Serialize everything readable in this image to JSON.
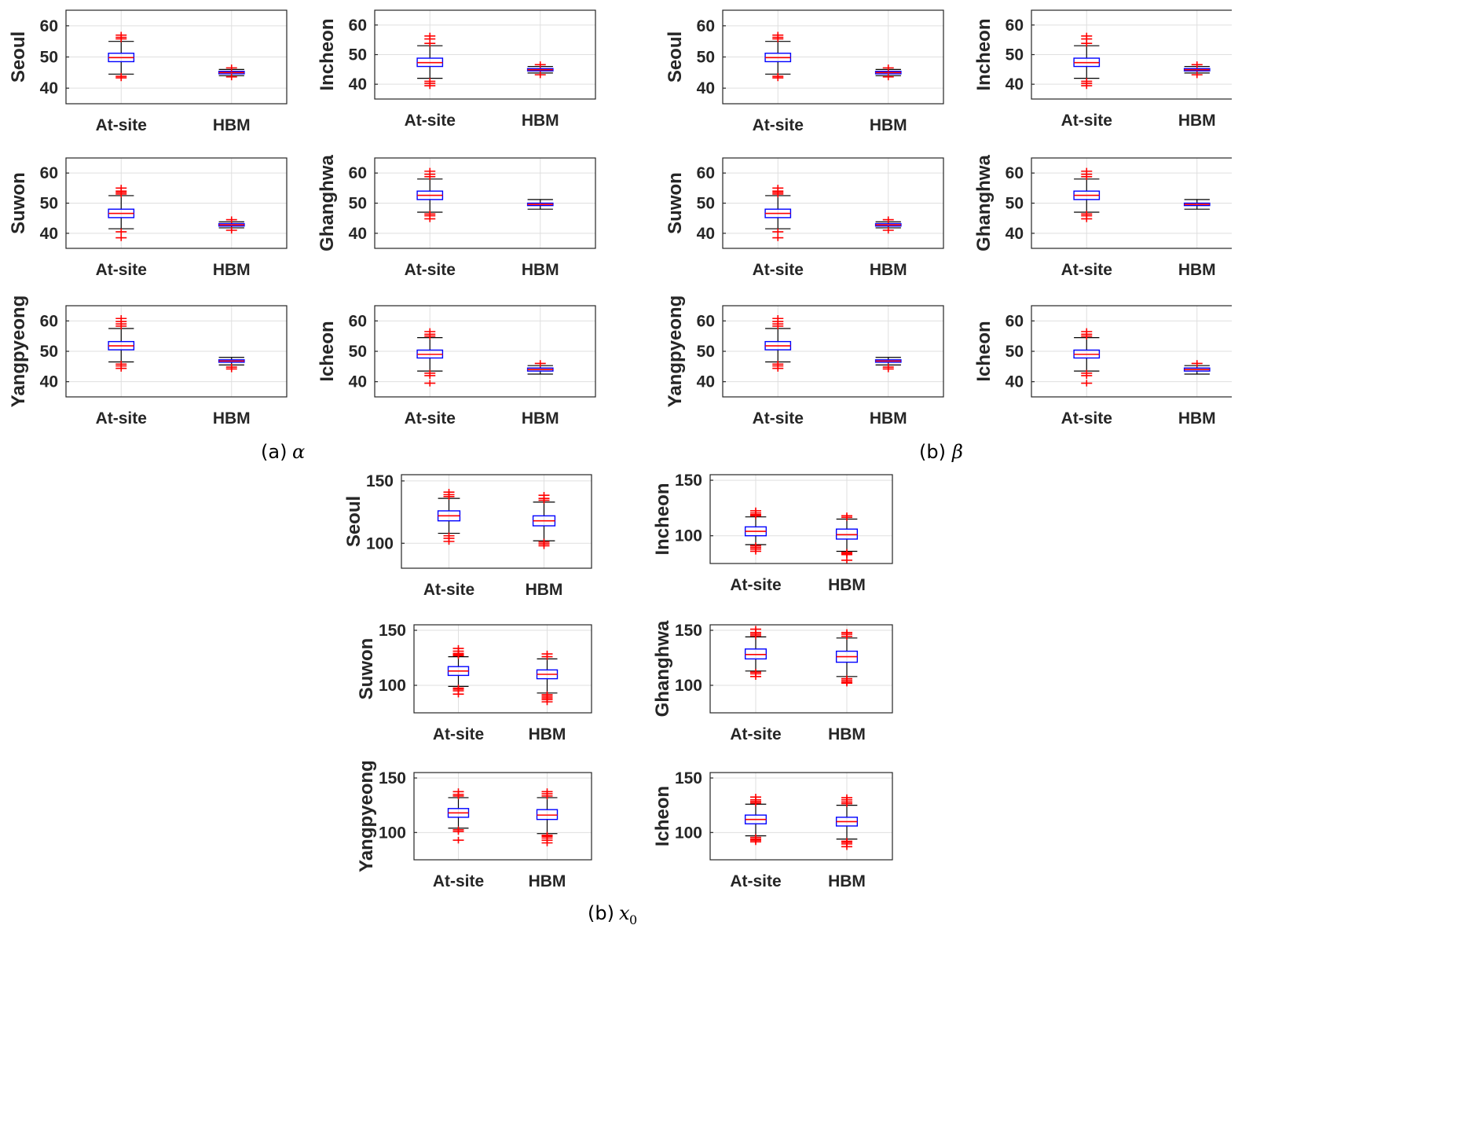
{
  "chart_data": {
    "type": "box",
    "x_categories": [
      "At-site",
      "HBM"
    ],
    "captions": {
      "alpha": {
        "label": "(a)",
        "symbol": "α"
      },
      "beta": {
        "label": "(b)",
        "symbol": "β"
      },
      "x0": {
        "label": "(b)",
        "symbol": "x",
        "subscript": "0"
      }
    },
    "colors": {
      "box": "#0000ff",
      "median": "#ff0000",
      "whisker": "#000000",
      "outlier": "#ff0000",
      "grid": "#dfdfdf",
      "axis": "#262626"
    },
    "panels": [
      {
        "group": "alpha",
        "station": "Seoul",
        "ylim": [
          35,
          65
        ],
        "yticks": [
          40,
          50,
          60
        ],
        "boxes": [
          {
            "q1": 48.5,
            "median": 49.8,
            "q3": 51.2,
            "whislo": 44.5,
            "whishi": 55.0,
            "outliers_high": [
              55.8,
              56.3,
              57.0
            ],
            "outliers_low": [
              43.8,
              43.3
            ]
          },
          {
            "q1": 44.6,
            "median": 45.0,
            "q3": 45.4,
            "whislo": 44.0,
            "whishi": 46.0,
            "outliers_high": [
              46.5
            ],
            "outliers_low": [
              43.6
            ]
          }
        ]
      },
      {
        "group": "alpha",
        "station": "Incheon",
        "ylim": [
          35,
          65
        ],
        "yticks": [
          40,
          50,
          60
        ],
        "boxes": [
          {
            "q1": 46.0,
            "median": 47.3,
            "q3": 48.8,
            "whislo": 42.0,
            "whishi": 53.0,
            "outliers_high": [
              53.8,
              55.3,
              56.3
            ],
            "outliers_low": [
              41.0,
              40.3,
              39.5
            ]
          },
          {
            "q1": 44.5,
            "median": 44.9,
            "q3": 45.3,
            "whislo": 43.8,
            "whishi": 46.0,
            "outliers_high": [
              46.6
            ],
            "outliers_low": [
              43.2
            ]
          }
        ]
      },
      {
        "group": "alpha",
        "station": "Suwon",
        "ylim": [
          35,
          65
        ],
        "yticks": [
          40,
          50,
          60
        ],
        "boxes": [
          {
            "q1": 45.2,
            "median": 46.6,
            "q3": 48.0,
            "whislo": 41.5,
            "whishi": 52.5,
            "outliers_high": [
              53.0,
              53.5,
              54.0,
              55.0
            ],
            "outliers_low": [
              40.5,
              38.5
            ]
          },
          {
            "q1": 42.4,
            "median": 42.8,
            "q3": 43.2,
            "whislo": 41.8,
            "whishi": 43.8,
            "outliers_high": [
              44.5
            ],
            "outliers_low": [
              41.0
            ]
          }
        ]
      },
      {
        "group": "alpha",
        "station": "Ghanghwa",
        "ylim": [
          35,
          65
        ],
        "yticks": [
          40,
          50,
          60
        ],
        "boxes": [
          {
            "q1": 51.2,
            "median": 52.6,
            "q3": 54.0,
            "whislo": 47.0,
            "whishi": 58.0,
            "outliers_high": [
              58.8,
              59.6,
              60.6
            ],
            "outliers_low": [
              46.4,
              45.8,
              44.8
            ]
          },
          {
            "q1": 49.2,
            "median": 49.6,
            "q3": 50.0,
            "whislo": 48.0,
            "whishi": 51.2,
            "outliers_high": [],
            "outliers_low": []
          }
        ]
      },
      {
        "group": "alpha",
        "station": "Yangpyeong",
        "ylim": [
          35,
          65
        ],
        "yticks": [
          40,
          50,
          60
        ],
        "boxes": [
          {
            "q1": 50.5,
            "median": 51.8,
            "q3": 53.2,
            "whislo": 46.5,
            "whishi": 57.5,
            "outliers_high": [
              58.3,
              59.0,
              59.8,
              60.8
            ],
            "outliers_low": [
              45.8,
              45.2,
              44.4
            ]
          },
          {
            "q1": 46.4,
            "median": 46.8,
            "q3": 47.2,
            "whislo": 45.5,
            "whishi": 48.0,
            "outliers_high": [],
            "outliers_low": [
              44.8,
              44.2
            ]
          }
        ]
      },
      {
        "group": "alpha",
        "station": "Icheon",
        "ylim": [
          35,
          65
        ],
        "yticks": [
          40,
          50,
          60
        ],
        "boxes": [
          {
            "q1": 47.8,
            "median": 49.0,
            "q3": 50.4,
            "whislo": 43.5,
            "whishi": 54.5,
            "outliers_high": [
              55.0,
              55.6,
              56.5
            ],
            "outliers_low": [
              42.8,
              42.0,
              39.5
            ]
          },
          {
            "q1": 43.5,
            "median": 44.0,
            "q3": 44.5,
            "whislo": 42.5,
            "whishi": 45.3,
            "outliers_high": [
              46.0
            ],
            "outliers_low": []
          }
        ]
      },
      {
        "group": "beta",
        "station": "Seoul",
        "ylim": [
          35,
          65
        ],
        "yticks": [
          40,
          50,
          60
        ],
        "boxes": [
          {
            "q1": 48.5,
            "median": 49.8,
            "q3": 51.2,
            "whislo": 44.5,
            "whishi": 55.0,
            "outliers_high": [
              55.8,
              56.3,
              57.0
            ],
            "outliers_low": [
              43.8,
              43.3
            ]
          },
          {
            "q1": 44.6,
            "median": 45.0,
            "q3": 45.4,
            "whislo": 44.0,
            "whishi": 46.0,
            "outliers_high": [
              46.5
            ],
            "outliers_low": [
              43.6
            ]
          }
        ]
      },
      {
        "group": "beta",
        "station": "Incheon",
        "ylim": [
          35,
          65
        ],
        "yticks": [
          40,
          50,
          60
        ],
        "boxes": [
          {
            "q1": 46.0,
            "median": 47.3,
            "q3": 48.8,
            "whislo": 42.0,
            "whishi": 53.0,
            "outliers_high": [
              53.8,
              55.3,
              56.3
            ],
            "outliers_low": [
              41.0,
              40.3,
              39.5
            ]
          },
          {
            "q1": 44.5,
            "median": 44.9,
            "q3": 45.3,
            "whislo": 43.8,
            "whishi": 46.0,
            "outliers_high": [
              46.6
            ],
            "outliers_low": [
              43.2
            ]
          }
        ]
      },
      {
        "group": "beta",
        "station": "Suwon",
        "ylim": [
          35,
          65
        ],
        "yticks": [
          40,
          50,
          60
        ],
        "boxes": [
          {
            "q1": 45.2,
            "median": 46.6,
            "q3": 48.0,
            "whislo": 41.5,
            "whishi": 52.5,
            "outliers_high": [
              53.0,
              53.5,
              54.0,
              55.0
            ],
            "outliers_low": [
              40.5,
              38.5
            ]
          },
          {
            "q1": 42.4,
            "median": 42.8,
            "q3": 43.2,
            "whislo": 41.8,
            "whishi": 43.8,
            "outliers_high": [
              44.5
            ],
            "outliers_low": [
              41.0
            ]
          }
        ]
      },
      {
        "group": "beta",
        "station": "Ghanghwa",
        "ylim": [
          35,
          65
        ],
        "yticks": [
          40,
          50,
          60
        ],
        "boxes": [
          {
            "q1": 51.2,
            "median": 52.6,
            "q3": 54.0,
            "whislo": 47.0,
            "whishi": 58.0,
            "outliers_high": [
              58.8,
              59.6,
              60.6
            ],
            "outliers_low": [
              46.4,
              45.8,
              44.8
            ]
          },
          {
            "q1": 49.2,
            "median": 49.6,
            "q3": 50.0,
            "whislo": 48.0,
            "whishi": 51.2,
            "outliers_high": [],
            "outliers_low": []
          }
        ]
      },
      {
        "group": "beta",
        "station": "Yangpyeong",
        "ylim": [
          35,
          65
        ],
        "yticks": [
          40,
          50,
          60
        ],
        "boxes": [
          {
            "q1": 50.5,
            "median": 51.8,
            "q3": 53.2,
            "whislo": 46.5,
            "whishi": 57.5,
            "outliers_high": [
              58.3,
              59.0,
              59.8,
              60.8
            ],
            "outliers_low": [
              45.8,
              45.2,
              44.4
            ]
          },
          {
            "q1": 46.4,
            "median": 46.8,
            "q3": 47.2,
            "whislo": 45.5,
            "whishi": 48.0,
            "outliers_high": [],
            "outliers_low": [
              44.8,
              44.2
            ]
          }
        ]
      },
      {
        "group": "beta",
        "station": "Icheon",
        "ylim": [
          35,
          65
        ],
        "yticks": [
          40,
          50,
          60
        ],
        "boxes": [
          {
            "q1": 47.8,
            "median": 49.0,
            "q3": 50.4,
            "whislo": 43.5,
            "whishi": 54.5,
            "outliers_high": [
              55.0,
              55.6,
              56.5
            ],
            "outliers_low": [
              42.8,
              42.0,
              39.5
            ]
          },
          {
            "q1": 43.5,
            "median": 44.0,
            "q3": 44.5,
            "whislo": 42.5,
            "whishi": 45.3,
            "outliers_high": [
              46.0
            ],
            "outliers_low": []
          }
        ]
      },
      {
        "group": "x0",
        "station": "Seoul",
        "ylim": [
          80,
          155
        ],
        "yticks": [
          100,
          150
        ],
        "boxes": [
          {
            "q1": 118,
            "median": 122,
            "q3": 126,
            "whislo": 108,
            "whishi": 136,
            "outliers_high": [
              137.5,
              139,
              141
            ],
            "outliers_low": [
              106,
              104,
              101.5
            ]
          },
          {
            "q1": 114,
            "median": 118,
            "q3": 122,
            "whislo": 102,
            "whishi": 133,
            "outliers_high": [
              134.5,
              136,
              138.5
            ],
            "outliers_low": [
              101,
              99.5,
              98
            ]
          }
        ]
      },
      {
        "group": "x0",
        "station": "Incheon",
        "ylim": [
          75,
          155
        ],
        "yticks": [
          100,
          150
        ],
        "boxes": [
          {
            "q1": 100,
            "median": 104,
            "q3": 108,
            "whislo": 92,
            "whishi": 117,
            "outliers_high": [
              118,
              119,
              120.5,
              122.5
            ],
            "outliers_low": [
              91,
              89.5,
              88,
              86
            ]
          },
          {
            "q1": 97,
            "median": 101,
            "q3": 106,
            "whislo": 86,
            "whishi": 115,
            "outliers_high": [
              116.5,
              118
            ],
            "outliers_low": [
              85,
              84,
              83,
              78
            ]
          }
        ]
      },
      {
        "group": "x0",
        "station": "Suwon",
        "ylim": [
          75,
          155
        ],
        "yticks": [
          100,
          150
        ],
        "boxes": [
          {
            "q1": 109,
            "median": 113,
            "q3": 117,
            "whislo": 99,
            "whishi": 126,
            "outliers_high": [
              127,
              128,
              129,
              131,
              133.5
            ],
            "outliers_low": [
              97.5,
              96.5,
              95,
              92
            ]
          },
          {
            "q1": 106,
            "median": 110,
            "q3": 114,
            "whislo": 93,
            "whishi": 124,
            "outliers_high": [
              126,
              128.5
            ],
            "outliers_low": [
              91.5,
              90,
              88.5,
              87,
              85
            ]
          }
        ]
      },
      {
        "group": "x0",
        "station": "Ghanghwa",
        "ylim": [
          75,
          155
        ],
        "yticks": [
          100,
          150
        ],
        "boxes": [
          {
            "q1": 124,
            "median": 128,
            "q3": 133,
            "whislo": 113,
            "whishi": 144,
            "outliers_high": [
              145,
              146.5,
              148,
              151
            ],
            "outliers_low": [
              112,
              110.5,
              108
            ]
          },
          {
            "q1": 121,
            "median": 126,
            "q3": 131,
            "whislo": 108,
            "whishi": 143,
            "outliers_high": [
              144.5,
              146.5,
              148
            ],
            "outliers_low": [
              106,
              104.5,
              103,
              102
            ]
          }
        ]
      },
      {
        "group": "x0",
        "station": "Yangpyeong",
        "ylim": [
          75,
          155
        ],
        "yticks": [
          100,
          150
        ],
        "boxes": [
          {
            "q1": 114,
            "median": 118,
            "q3": 122,
            "whislo": 104,
            "whishi": 132,
            "outliers_high": [
              133.5,
              135,
              137.5
            ],
            "outliers_low": [
              102.5,
              101,
              93
            ]
          },
          {
            "q1": 112,
            "median": 116,
            "q3": 121,
            "whislo": 99,
            "whishi": 132,
            "outliers_high": [
              133.5,
              135.5,
              137.5
            ],
            "outliers_low": [
              97.5,
              96.5,
              95,
              93,
              90.5
            ]
          }
        ]
      },
      {
        "group": "x0",
        "station": "Icheon",
        "ylim": [
          75,
          155
        ],
        "yticks": [
          100,
          150
        ],
        "boxes": [
          {
            "q1": 108,
            "median": 112,
            "q3": 116,
            "whislo": 97,
            "whishi": 126,
            "outliers_high": [
              127,
              128.5,
              130,
              132.5
            ],
            "outliers_low": [
              95.5,
              94,
              93,
              91.5
            ]
          },
          {
            "q1": 106,
            "median": 110,
            "q3": 114,
            "whislo": 94,
            "whishi": 125,
            "outliers_high": [
              126.5,
              128,
              130,
              132
            ],
            "outliers_low": [
              92,
              91,
              89.5,
              87
            ]
          }
        ]
      }
    ]
  }
}
